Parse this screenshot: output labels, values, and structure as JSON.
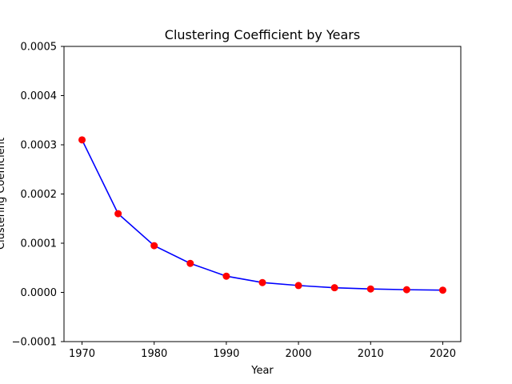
{
  "chart_data": {
    "type": "line",
    "title": "Clustering Coefficient by Years",
    "xlabel": "Year",
    "ylabel": "Clustering Coefficient",
    "x": [
      1970,
      1975,
      1980,
      1985,
      1990,
      1995,
      2000,
      2005,
      2010,
      2015,
      2020
    ],
    "series": [
      {
        "values": [
          0.00031,
          0.00016,
          9.5e-05,
          5.9e-05,
          3.3e-05,
          2e-05,
          1.4e-05,
          9.5e-06,
          7e-06,
          5.5e-06,
          4.5e-06
        ],
        "line_color": "#0000ff",
        "marker_color": "#ff0000"
      }
    ],
    "xlim": [
      1967.5,
      2022.5
    ],
    "ylim": [
      -0.0001,
      0.0005
    ],
    "xticks": [
      {
        "value": 1970,
        "label": "1970"
      },
      {
        "value": 1980,
        "label": "1980"
      },
      {
        "value": 1990,
        "label": "1990"
      },
      {
        "value": 2000,
        "label": "2000"
      },
      {
        "value": 2010,
        "label": "2010"
      },
      {
        "value": 2020,
        "label": "2020"
      }
    ],
    "yticks": [
      {
        "value": -0.0001,
        "label": "−0.0001"
      },
      {
        "value": 0,
        "label": "0.0000"
      },
      {
        "value": 0.0001,
        "label": "0.0001"
      },
      {
        "value": 0.0002,
        "label": "0.0002"
      },
      {
        "value": 0.0003,
        "label": "0.0003"
      },
      {
        "value": 0.0004,
        "label": "0.0004"
      },
      {
        "value": 0.0005,
        "label": "0.0005"
      }
    ],
    "grid": false,
    "legend": "none"
  }
}
